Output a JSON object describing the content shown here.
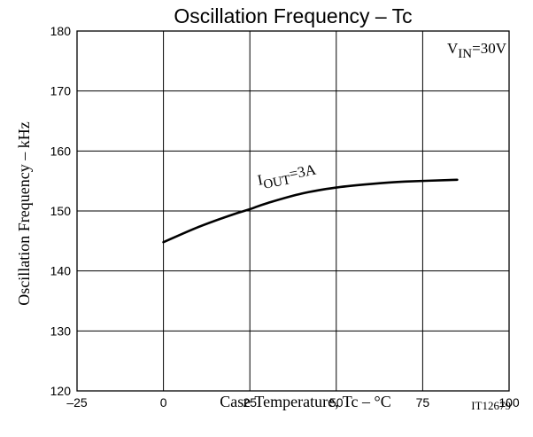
{
  "chart_data": {
    "type": "line",
    "title": "Oscillation Frequency  –  Tc",
    "xlabel": "Case Temperature,  Tc  –  °C",
    "ylabel": "Oscillation Frequency  –  kHz",
    "xlim": [
      -25,
      100
    ],
    "ylim": [
      120,
      180
    ],
    "xticks": [
      -25,
      0,
      25,
      50,
      75,
      100
    ],
    "yticks": [
      120,
      130,
      140,
      150,
      160,
      170,
      180
    ],
    "xtick_labels": [
      "–25",
      "0",
      "25",
      "50",
      "75",
      "100"
    ],
    "ytick_labels": [
      "120",
      "130",
      "140",
      "150",
      "160",
      "170",
      "180"
    ],
    "grid": true,
    "series": [
      {
        "name": "IOUT=3A",
        "x": [
          0,
          10,
          20,
          25,
          30,
          40,
          50,
          60,
          70,
          85
        ],
        "y": [
          144.8,
          147.3,
          149.4,
          150.3,
          151.3,
          152.9,
          153.9,
          154.5,
          154.9,
          155.2
        ]
      }
    ],
    "annotations": {
      "condition": {
        "main": "V",
        "sub": "IN",
        "rest": "=30V"
      },
      "series_label": {
        "main": "I",
        "sub": "OUT",
        "rest": "=3A"
      }
    },
    "figure_code": "IT12679"
  }
}
